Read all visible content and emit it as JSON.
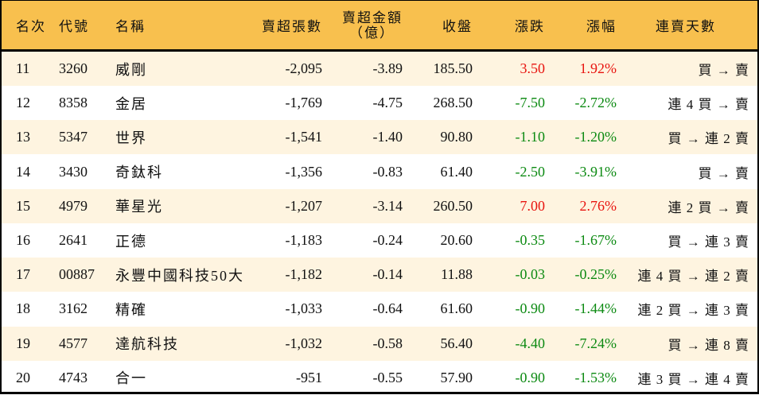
{
  "table": {
    "headers": {
      "rank": "名次",
      "code": "代號",
      "name": "名稱",
      "net_sell_lots": "賣超張數",
      "net_sell_amount_line1": "賣超金額",
      "net_sell_amount_line2": "（億）",
      "close": "收盤",
      "change": "漲跌",
      "change_pct": "漲幅",
      "streak": "連賣天數"
    },
    "colors": {
      "header_bg": "#F8C04E",
      "alt_row_bg": "#FEF4E0",
      "up": "#E8140F",
      "down": "#0C8A12",
      "border": "#000000"
    },
    "rows": [
      {
        "rank": "11",
        "code": "3260",
        "name": "威剛",
        "lots": "-2,095",
        "amount": "-3.89",
        "close": "185.50",
        "change": "3.50",
        "pct": "1.92%",
        "dir": "up",
        "streak": "買 → 賣"
      },
      {
        "rank": "12",
        "code": "8358",
        "name": "金居",
        "lots": "-1,769",
        "amount": "-4.75",
        "close": "268.50",
        "change": "-7.50",
        "pct": "-2.72%",
        "dir": "down",
        "streak": "連 4 買 → 賣"
      },
      {
        "rank": "13",
        "code": "5347",
        "name": "世界",
        "lots": "-1,541",
        "amount": "-1.40",
        "close": "90.80",
        "change": "-1.10",
        "pct": "-1.20%",
        "dir": "down",
        "streak": "買 → 連 2 賣"
      },
      {
        "rank": "14",
        "code": "3430",
        "name": "奇鈦科",
        "lots": "-1,356",
        "amount": "-0.83",
        "close": "61.40",
        "change": "-2.50",
        "pct": "-3.91%",
        "dir": "down",
        "streak": "買 → 賣"
      },
      {
        "rank": "15",
        "code": "4979",
        "name": "華星光",
        "lots": "-1,207",
        "amount": "-3.14",
        "close": "260.50",
        "change": "7.00",
        "pct": "2.76%",
        "dir": "up",
        "streak": "連 2 買 → 賣"
      },
      {
        "rank": "16",
        "code": "2641",
        "name": "正德",
        "lots": "-1,183",
        "amount": "-0.24",
        "close": "20.60",
        "change": "-0.35",
        "pct": "-1.67%",
        "dir": "down",
        "streak": "買 → 連 3 賣"
      },
      {
        "rank": "17",
        "code": "00887",
        "name": "永豐中國科技50大",
        "lots": "-1,182",
        "amount": "-0.14",
        "close": "11.88",
        "change": "-0.03",
        "pct": "-0.25%",
        "dir": "down",
        "streak": "連 4 買 → 連 2 賣"
      },
      {
        "rank": "18",
        "code": "3162",
        "name": "精確",
        "lots": "-1,033",
        "amount": "-0.64",
        "close": "61.60",
        "change": "-0.90",
        "pct": "-1.44%",
        "dir": "down",
        "streak": "連 2 買 → 連 3 賣"
      },
      {
        "rank": "19",
        "code": "4577",
        "name": "達航科技",
        "lots": "-1,032",
        "amount": "-0.58",
        "close": "56.40",
        "change": "-4.40",
        "pct": "-7.24%",
        "dir": "down",
        "streak": "買 → 連 8 賣"
      },
      {
        "rank": "20",
        "code": "4743",
        "name": "合一",
        "lots": "-951",
        "amount": "-0.55",
        "close": "57.90",
        "change": "-0.90",
        "pct": "-1.53%",
        "dir": "down",
        "streak": "連 3 買 → 連 4 賣"
      }
    ]
  }
}
